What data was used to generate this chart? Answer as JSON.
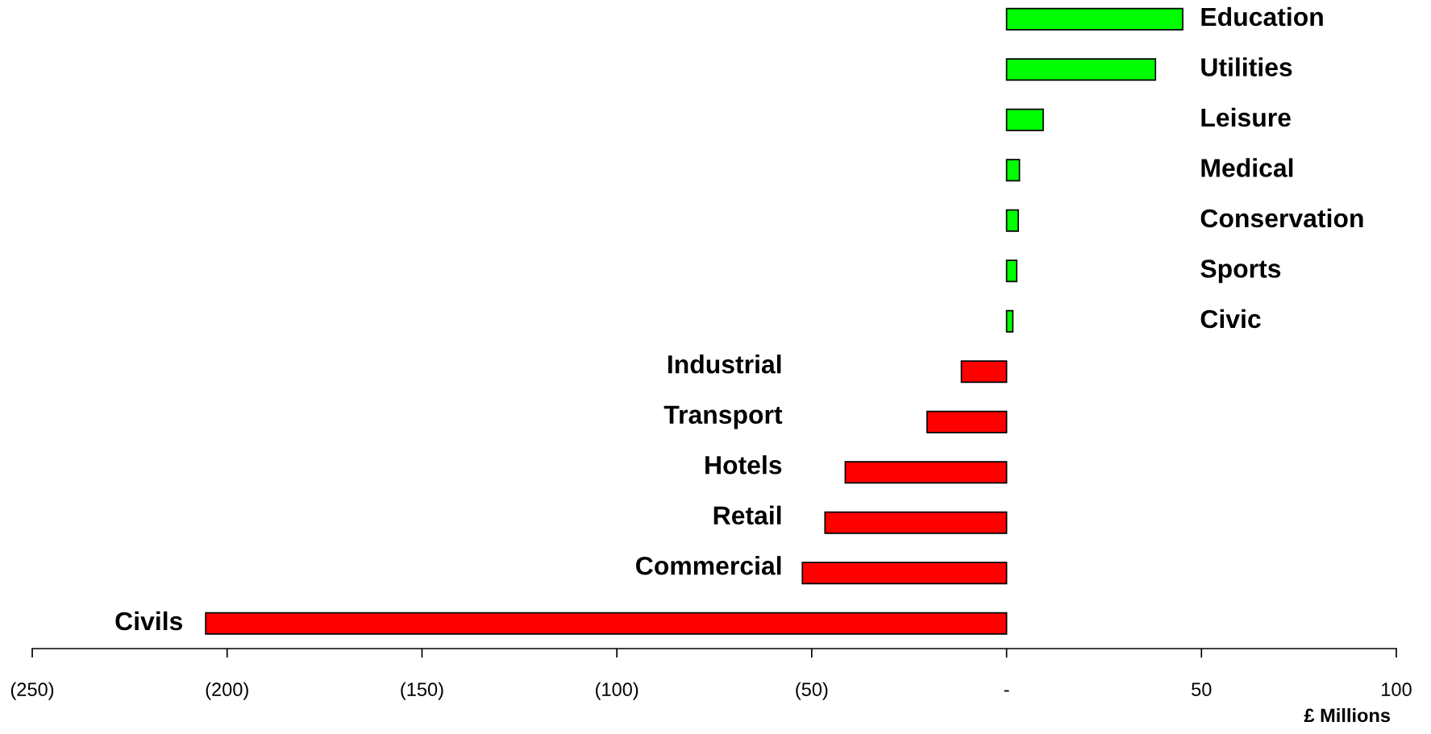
{
  "chart_data": {
    "type": "bar",
    "orientation": "horizontal",
    "xlabel": "£ Millions",
    "categories": [
      "Education",
      "Utilities",
      "Leisure",
      "Medical",
      "Conservation",
      "Sports",
      "Civic",
      "Industrial",
      "Transport",
      "Hotels",
      "Retail",
      "Commercial",
      "Civils"
    ],
    "values": [
      45.2,
      38.2,
      9.4,
      3.3,
      3,
      2.6,
      1.6,
      -11.6,
      -20.4,
      -41.4,
      -46.6,
      -52.4,
      -205.5
    ],
    "colors": [
      "#00ff00",
      "#00ff00",
      "#00ff00",
      "#00ff00",
      "#00ff00",
      "#00ff00",
      "#00ff00",
      "#ff0000",
      "#ff0000",
      "#ff0000",
      "#ff0000",
      "#ff0000",
      "#ff0000"
    ],
    "xlim": [
      -250,
      100
    ],
    "xticks": [
      {
        "value": -250,
        "label": "(250)"
      },
      {
        "value": -200,
        "label": "(200)"
      },
      {
        "value": -150,
        "label": "(150)"
      },
      {
        "value": -100,
        "label": "(100)"
      },
      {
        "value": -50,
        "label": "(50)"
      },
      {
        "value": 0,
        "label": "-"
      },
      50,
      100
    ],
    "grid": false,
    "legend": false
  }
}
